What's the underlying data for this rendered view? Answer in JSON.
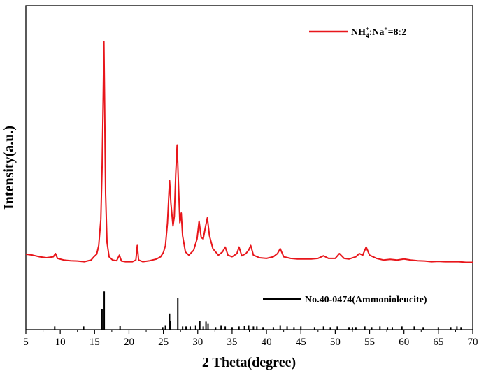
{
  "chart_data": {
    "type": "line",
    "xlabel": "2 Theta(degree)",
    "ylabel": "Intensity(a.u.)",
    "xlim": [
      5,
      70
    ],
    "x_ticks": [
      5,
      10,
      15,
      20,
      25,
      30,
      35,
      40,
      45,
      50,
      55,
      60,
      65,
      70
    ],
    "x_tick_labels": [
      "5",
      "10",
      "15",
      "20",
      "25",
      "30",
      "35",
      "40",
      "45",
      "50",
      "55",
      "60",
      "65",
      "70"
    ],
    "ylim": [
      0,
      100
    ],
    "y_ticks_shown": false,
    "grid": false,
    "legend_placement": "top-right and middle-right",
    "series": [
      {
        "name": "NH4+:Na+=8:2",
        "color": "#e8161b",
        "style": "line",
        "points": [
          [
            5.0,
            23.3
          ],
          [
            6.0,
            23.0
          ],
          [
            7.0,
            22.5
          ],
          [
            8.0,
            22.2
          ],
          [
            9.0,
            22.5
          ],
          [
            9.3,
            23.5
          ],
          [
            9.6,
            22.0
          ],
          [
            10.5,
            21.5
          ],
          [
            11.5,
            21.3
          ],
          [
            12.5,
            21.2
          ],
          [
            13.5,
            21.0
          ],
          [
            14.5,
            21.5
          ],
          [
            14.9,
            22.5
          ],
          [
            15.3,
            23.3
          ],
          [
            15.6,
            26.0
          ],
          [
            15.9,
            34.0
          ],
          [
            16.1,
            51.0
          ],
          [
            16.25,
            72.0
          ],
          [
            16.35,
            89.0
          ],
          [
            16.45,
            70.0
          ],
          [
            16.6,
            42.0
          ],
          [
            16.8,
            27.0
          ],
          [
            17.1,
            22.5
          ],
          [
            17.6,
            21.5
          ],
          [
            18.2,
            21.3
          ],
          [
            18.6,
            23.0
          ],
          [
            18.9,
            21.2
          ],
          [
            19.5,
            21.0
          ],
          [
            20.5,
            21.0
          ],
          [
            21.0,
            21.5
          ],
          [
            21.2,
            26.0
          ],
          [
            21.4,
            21.5
          ],
          [
            22.0,
            21.0
          ],
          [
            23.0,
            21.3
          ],
          [
            24.0,
            21.8
          ],
          [
            24.6,
            22.5
          ],
          [
            25.0,
            23.8
          ],
          [
            25.3,
            26.0
          ],
          [
            25.6,
            33.0
          ],
          [
            25.9,
            46.0
          ],
          [
            26.1,
            39.0
          ],
          [
            26.4,
            32.0
          ],
          [
            26.6,
            35.0
          ],
          [
            26.8,
            48.0
          ],
          [
            27.0,
            57.0
          ],
          [
            27.2,
            45.0
          ],
          [
            27.4,
            33.0
          ],
          [
            27.6,
            36.0
          ],
          [
            27.8,
            29.0
          ],
          [
            28.2,
            24.0
          ],
          [
            28.7,
            23.0
          ],
          [
            29.4,
            24.5
          ],
          [
            29.9,
            28.0
          ],
          [
            30.2,
            33.5
          ],
          [
            30.5,
            28.5
          ],
          [
            30.8,
            28.0
          ],
          [
            31.1,
            31.5
          ],
          [
            31.4,
            34.5
          ],
          [
            31.7,
            29.0
          ],
          [
            32.2,
            25.0
          ],
          [
            33.0,
            23.0
          ],
          [
            33.6,
            24.0
          ],
          [
            34.0,
            25.5
          ],
          [
            34.4,
            23.0
          ],
          [
            35.0,
            22.5
          ],
          [
            35.7,
            23.5
          ],
          [
            36.0,
            25.5
          ],
          [
            36.4,
            22.8
          ],
          [
            37.0,
            23.5
          ],
          [
            37.4,
            24.5
          ],
          [
            37.7,
            26.0
          ],
          [
            38.1,
            23.0
          ],
          [
            39.0,
            22.2
          ],
          [
            40.0,
            22.0
          ],
          [
            41.0,
            22.5
          ],
          [
            41.6,
            23.5
          ],
          [
            42.0,
            25.0
          ],
          [
            42.5,
            22.5
          ],
          [
            43.5,
            22.0
          ],
          [
            44.5,
            21.8
          ],
          [
            45.5,
            21.8
          ],
          [
            46.5,
            21.8
          ],
          [
            47.5,
            22.0
          ],
          [
            48.3,
            22.8
          ],
          [
            49.0,
            22.0
          ],
          [
            50.0,
            22.0
          ],
          [
            50.6,
            23.5
          ],
          [
            51.3,
            22.0
          ],
          [
            52.0,
            21.8
          ],
          [
            53.0,
            22.5
          ],
          [
            53.5,
            23.5
          ],
          [
            54.0,
            23.0
          ],
          [
            54.5,
            25.5
          ],
          [
            55.0,
            23.0
          ],
          [
            56.0,
            22.0
          ],
          [
            57.0,
            21.5
          ],
          [
            58.0,
            21.7
          ],
          [
            59.0,
            21.5
          ],
          [
            60.0,
            21.8
          ],
          [
            61.0,
            21.5
          ],
          [
            62.0,
            21.3
          ],
          [
            63.0,
            21.2
          ],
          [
            64.0,
            21.0
          ],
          [
            65.0,
            21.1
          ],
          [
            66.0,
            21.0
          ],
          [
            67.0,
            21.0
          ],
          [
            68.0,
            21.0
          ],
          [
            69.0,
            20.8
          ],
          [
            70.0,
            20.8
          ]
        ]
      },
      {
        "name": "No.40-0474(Ammonioleucite)",
        "color": "#000000",
        "style": "sticks",
        "baseline": 0,
        "sticks": [
          [
            9.2,
            1.0
          ],
          [
            13.4,
            1.0
          ],
          [
            16.0,
            6.3
          ],
          [
            16.2,
            6.3
          ],
          [
            16.4,
            11.8
          ],
          [
            18.7,
            1.2
          ],
          [
            24.9,
            0.8
          ],
          [
            25.3,
            1.4
          ],
          [
            25.9,
            5.0
          ],
          [
            26.0,
            2.8
          ],
          [
            27.1,
            9.8
          ],
          [
            27.8,
            1.0
          ],
          [
            28.3,
            1.0
          ],
          [
            28.9,
            1.0
          ],
          [
            29.7,
            1.4
          ],
          [
            30.3,
            2.8
          ],
          [
            30.8,
            1.0
          ],
          [
            31.2,
            2.5
          ],
          [
            31.5,
            1.8
          ],
          [
            32.6,
            0.8
          ],
          [
            33.4,
            1.4
          ],
          [
            34.0,
            1.0
          ],
          [
            35.0,
            0.8
          ],
          [
            36.0,
            1.0
          ],
          [
            36.8,
            1.2
          ],
          [
            37.4,
            1.4
          ],
          [
            38.1,
            1.0
          ],
          [
            38.6,
            1.0
          ],
          [
            39.5,
            0.8
          ],
          [
            41.0,
            0.8
          ],
          [
            42.0,
            1.4
          ],
          [
            43.0,
            1.0
          ],
          [
            44.0,
            0.8
          ],
          [
            45.0,
            1.0
          ],
          [
            47.0,
            0.8
          ],
          [
            48.3,
            1.0
          ],
          [
            49.3,
            0.8
          ],
          [
            50.3,
            1.0
          ],
          [
            52.0,
            0.8
          ],
          [
            52.5,
            0.8
          ],
          [
            53.0,
            0.8
          ],
          [
            54.3,
            1.0
          ],
          [
            55.3,
            0.8
          ],
          [
            56.5,
            1.0
          ],
          [
            57.6,
            0.8
          ],
          [
            58.3,
            0.8
          ],
          [
            59.7,
            1.0
          ],
          [
            61.5,
            1.0
          ],
          [
            62.8,
            0.8
          ],
          [
            65.0,
            0.8
          ],
          [
            66.8,
            0.8
          ],
          [
            67.7,
            1.0
          ],
          [
            68.3,
            0.8
          ]
        ]
      }
    ],
    "legend_labels": {
      "series1_base": "NH",
      "series1_sub": "4",
      "series1_sup1": "+",
      "series1_mid": ":Na",
      "series1_sup2": "+",
      "series1_tail": "=8:2",
      "series2": "No.40-0474(Ammonioleucite)"
    }
  }
}
